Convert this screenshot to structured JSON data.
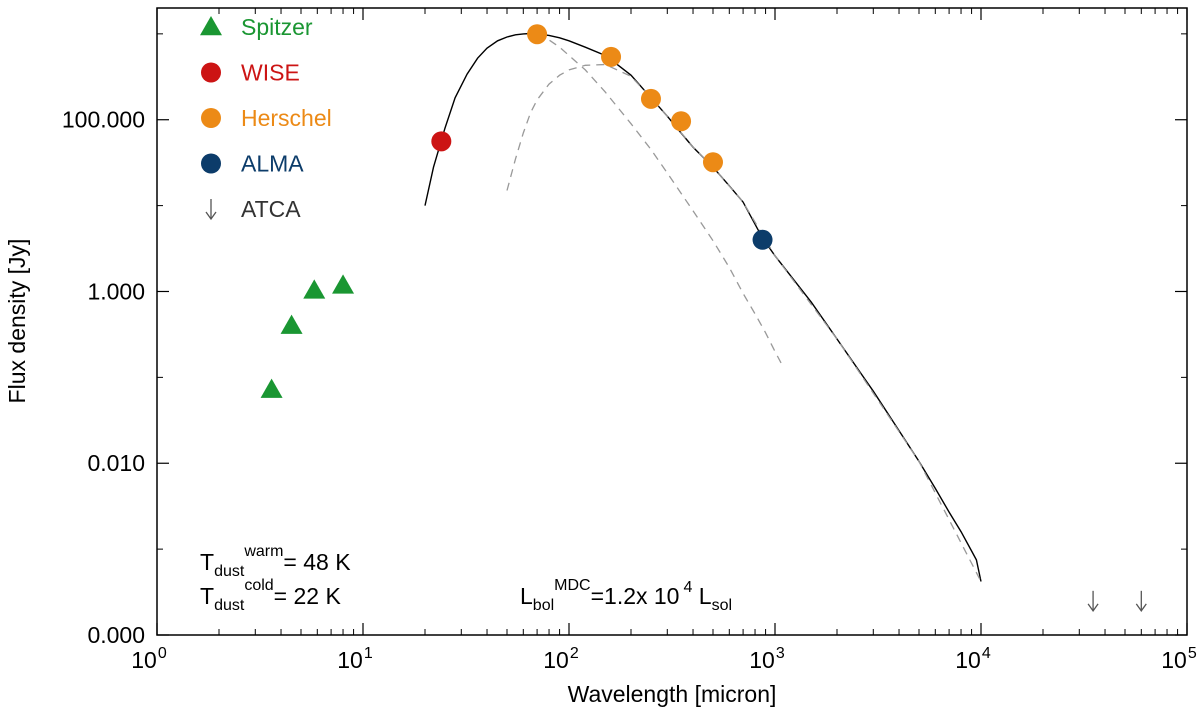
{
  "chart_data": {
    "type": "scatter",
    "xscale": "log",
    "yscale": "log",
    "xlim": [
      1,
      100000
    ],
    "ylim": [
      0.0001,
      2000
    ],
    "xlabel": "Wavelength [micron]",
    "ylabel": "Flux density [Jy]",
    "xticks": [
      {
        "value": 1,
        "base": "10",
        "exp": "0"
      },
      {
        "value": 10,
        "base": "10",
        "exp": "1"
      },
      {
        "value": 100,
        "base": "10",
        "exp": "2"
      },
      {
        "value": 1000,
        "base": "10",
        "exp": "3"
      },
      {
        "value": 10000,
        "base": "10",
        "exp": "4"
      },
      {
        "value": 100000,
        "base": "10",
        "exp": "5"
      }
    ],
    "yticks": [
      {
        "value": 0.0001,
        "label": "0.000"
      },
      {
        "value": 0.01,
        "label": "0.010"
      },
      {
        "value": 1,
        "label": "1.000"
      },
      {
        "value": 100,
        "label": "100.000"
      }
    ],
    "series": [
      {
        "name": "Spitzer",
        "marker": "triangle",
        "color": "#1a9632",
        "x": [
          3.6,
          4.5,
          5.8,
          8.0
        ],
        "y": [
          0.072,
          0.4,
          1.03,
          1.18
        ]
      },
      {
        "name": "WISE",
        "marker": "circle",
        "color": "#cc1414",
        "x": [
          24
        ],
        "y": [
          56
        ]
      },
      {
        "name": "Herschel",
        "marker": "circle",
        "color": "#ec8a16",
        "x": [
          70,
          160,
          250,
          350,
          500
        ],
        "y": [
          990,
          540,
          175,
          96,
          32
        ]
      },
      {
        "name": "ALMA",
        "marker": "circle",
        "color": "#0c3c6a",
        "x": [
          870
        ],
        "y": [
          4.0
        ]
      },
      {
        "name": "ATCA",
        "marker": "arrow-down",
        "color": "#555555",
        "x": [
          35000,
          60000
        ],
        "y": [
          0.00025,
          0.00025
        ]
      }
    ],
    "curves": [
      {
        "name": "total-sed",
        "style": "solid",
        "color": "#000000",
        "x": [
          20,
          22,
          25,
          28,
          32,
          36,
          40,
          45,
          50,
          55,
          60,
          65,
          70,
          80,
          90,
          100,
          120,
          150,
          160,
          200,
          250,
          300,
          350,
          400,
          500,
          600,
          700,
          870,
          1000,
          1500,
          2000,
          3000,
          4000,
          5000,
          6000,
          7000,
          8000,
          9000,
          9500,
          10000
        ],
        "y": [
          10,
          28,
          80,
          180,
          340,
          520,
          680,
          830,
          920,
          975,
          1000,
          1010,
          1000,
          960,
          900,
          830,
          700,
          560,
          500,
          330,
          180,
          110,
          70,
          48,
          28,
          17,
          11,
          4.2,
          2.6,
          0.75,
          0.28,
          0.069,
          0.024,
          0.0105,
          0.0051,
          0.0027,
          0.0016,
          0.00095,
          0.00075,
          0.00042
        ]
      },
      {
        "name": "warm-component",
        "style": "dashed",
        "color": "#999999",
        "x": [
          70,
          80,
          90,
          100,
          120,
          150,
          200,
          250,
          300,
          400,
          500,
          600,
          700,
          800,
          900,
          1000,
          1100
        ],
        "y": [
          1000,
          850,
          700,
          560,
          380,
          210,
          90,
          45,
          24,
          8.7,
          3.9,
          1.9,
          0.95,
          0.55,
          0.33,
          0.2,
          0.13
        ]
      },
      {
        "name": "cold-component",
        "style": "dashed",
        "color": "#999999",
        "x": [
          50,
          55,
          60,
          65,
          70,
          80,
          90,
          100,
          120,
          150,
          200,
          250,
          300,
          400,
          500,
          700,
          1000,
          2000,
          5000,
          10000
        ],
        "y": [
          15,
          35,
          70,
          120,
          170,
          260,
          330,
          380,
          430,
          440,
          320,
          180,
          110,
          48,
          28,
          11,
          2.6,
          0.28,
          0.0105,
          0.00042
        ]
      }
    ],
    "annotations": {
      "t_warm": {
        "main": "T",
        "sub": "dust",
        "sup": "warm",
        "value": "=  48 K"
      },
      "t_cold": {
        "main": "T",
        "sub": "dust",
        "sup": "cold",
        "value": "=  22 K"
      },
      "lbol": {
        "main": "L",
        "sub": "bol",
        "sup": "MDC",
        "value_main": "=1.2x 10",
        "value_exp": "4",
        "unit_main": " L",
        "unit_sub": "sol"
      }
    }
  }
}
